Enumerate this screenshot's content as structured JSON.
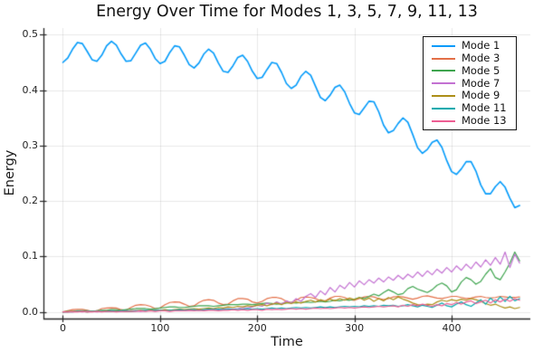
{
  "chart_data": {
    "type": "line",
    "title": "Energy Over Time for Modes 1, 3, 5, 7, 9, 11, 13",
    "xlabel": "Time",
    "ylabel": "Energy",
    "xlim": [
      -20,
      481
    ],
    "ylim": [
      -0.012,
      0.512
    ],
    "x_ticks": [
      0,
      100,
      200,
      300,
      400
    ],
    "x_tick_labels": [
      "0",
      "100",
      "200",
      "300",
      "400"
    ],
    "y_ticks": [
      0,
      0.1,
      0.2,
      0.3,
      0.4,
      0.5
    ],
    "y_tick_labels": [
      "0.0",
      "0.1",
      "0.2",
      "0.3",
      "0.4",
      "0.5"
    ],
    "grid": true,
    "grid_color": "rgba(0,0,0,0.09)",
    "axis_color": "#262626",
    "legend_position": "top-right",
    "x_start": 0,
    "x_step": 5,
    "series": [
      {
        "name": "Mode 1",
        "color": "#009AFA",
        "line_width": 1.6,
        "values": [
          0.45,
          0.458,
          0.474,
          0.486,
          0.484,
          0.47,
          0.455,
          0.452,
          0.463,
          0.48,
          0.488,
          0.481,
          0.465,
          0.452,
          0.453,
          0.467,
          0.481,
          0.485,
          0.474,
          0.457,
          0.448,
          0.452,
          0.468,
          0.48,
          0.478,
          0.463,
          0.446,
          0.44,
          0.449,
          0.465,
          0.474,
          0.467,
          0.449,
          0.434,
          0.432,
          0.444,
          0.459,
          0.463,
          0.452,
          0.434,
          0.421,
          0.423,
          0.437,
          0.45,
          0.448,
          0.432,
          0.412,
          0.403,
          0.409,
          0.425,
          0.434,
          0.427,
          0.407,
          0.387,
          0.381,
          0.391,
          0.405,
          0.409,
          0.397,
          0.376,
          0.359,
          0.356,
          0.368,
          0.38,
          0.379,
          0.361,
          0.337,
          0.323,
          0.327,
          0.34,
          0.35,
          0.342,
          0.32,
          0.296,
          0.286,
          0.293,
          0.306,
          0.31,
          0.297,
          0.273,
          0.253,
          0.248,
          0.258,
          0.271,
          0.271,
          0.254,
          0.229,
          0.213,
          0.213,
          0.226,
          0.235,
          0.225,
          0.205,
          0.188,
          0.192
        ]
      },
      {
        "name": "Mode 3",
        "color": "#E36F47",
        "line_width": 1.2,
        "values": [
          0.0,
          0.002,
          0.004,
          0.0045,
          0.0045,
          0.003,
          0.001,
          0.002,
          0.006,
          0.007,
          0.0075,
          0.007,
          0.004,
          0.003,
          0.008,
          0.012,
          0.013,
          0.0125,
          0.01,
          0.006,
          0.007,
          0.013,
          0.017,
          0.018,
          0.0175,
          0.014,
          0.01,
          0.011,
          0.017,
          0.021,
          0.022,
          0.021,
          0.016,
          0.013,
          0.014,
          0.02,
          0.024,
          0.024,
          0.023,
          0.018,
          0.016,
          0.019,
          0.024,
          0.026,
          0.026,
          0.024,
          0.019,
          0.017,
          0.021,
          0.026,
          0.027,
          0.026,
          0.024,
          0.02,
          0.02,
          0.025,
          0.028,
          0.028,
          0.026,
          0.022,
          0.021,
          0.024,
          0.027,
          0.028,
          0.027,
          0.024,
          0.022,
          0.024,
          0.027,
          0.028,
          0.027,
          0.025,
          0.023,
          0.025,
          0.028,
          0.029,
          0.027,
          0.025,
          0.024,
          0.026,
          0.028,
          0.028,
          0.026,
          0.024,
          0.025,
          0.027,
          0.028,
          0.026,
          0.025,
          0.026,
          0.028,
          0.027,
          0.026,
          0.026,
          0.027
        ]
      },
      {
        "name": "Mode 5",
        "color": "#3EA44E",
        "line_width": 1.2,
        "values": [
          0.0,
          0.001,
          0.001,
          0.002,
          0.002,
          0.002,
          0.001,
          0.002,
          0.003,
          0.003,
          0.004,
          0.004,
          0.003,
          0.004,
          0.005,
          0.006,
          0.006,
          0.006,
          0.005,
          0.006,
          0.007,
          0.008,
          0.009,
          0.009,
          0.008,
          0.008,
          0.009,
          0.01,
          0.011,
          0.011,
          0.011,
          0.01,
          0.011,
          0.012,
          0.013,
          0.013,
          0.013,
          0.014,
          0.014,
          0.013,
          0.014,
          0.015,
          0.016,
          0.015,
          0.014,
          0.015,
          0.016,
          0.017,
          0.016,
          0.017,
          0.018,
          0.017,
          0.018,
          0.019,
          0.018,
          0.019,
          0.021,
          0.02,
          0.022,
          0.021,
          0.023,
          0.026,
          0.024,
          0.028,
          0.032,
          0.029,
          0.035,
          0.04,
          0.036,
          0.031,
          0.033,
          0.042,
          0.046,
          0.041,
          0.038,
          0.035,
          0.04,
          0.048,
          0.052,
          0.047,
          0.036,
          0.04,
          0.054,
          0.062,
          0.058,
          0.05,
          0.055,
          0.068,
          0.078,
          0.062,
          0.058,
          0.072,
          0.088,
          0.108,
          0.092
        ]
      },
      {
        "name": "Mode 7",
        "color": "#C371D2",
        "line_width": 1.2,
        "values": [
          0.0,
          0.0,
          0.001,
          0.001,
          0.0,
          0.001,
          0.001,
          0.0,
          0.001,
          0.001,
          0.001,
          0.002,
          0.001,
          0.001,
          0.002,
          0.002,
          0.001,
          0.002,
          0.002,
          0.002,
          0.002,
          0.003,
          0.002,
          0.003,
          0.003,
          0.002,
          0.003,
          0.003,
          0.004,
          0.003,
          0.004,
          0.005,
          0.004,
          0.005,
          0.006,
          0.005,
          0.006,
          0.008,
          0.007,
          0.009,
          0.012,
          0.01,
          0.016,
          0.013,
          0.018,
          0.014,
          0.02,
          0.016,
          0.024,
          0.019,
          0.028,
          0.033,
          0.026,
          0.038,
          0.031,
          0.044,
          0.036,
          0.048,
          0.042,
          0.053,
          0.045,
          0.056,
          0.049,
          0.058,
          0.052,
          0.061,
          0.054,
          0.063,
          0.057,
          0.066,
          0.059,
          0.068,
          0.062,
          0.072,
          0.064,
          0.074,
          0.067,
          0.077,
          0.07,
          0.08,
          0.072,
          0.083,
          0.075,
          0.086,
          0.078,
          0.09,
          0.081,
          0.094,
          0.084,
          0.098,
          0.086,
          0.108,
          0.08,
          0.104,
          0.088
        ]
      },
      {
        "name": "Mode 9",
        "color": "#AC8E18",
        "line_width": 1.2,
        "values": [
          0.0,
          0.0,
          0.001,
          0.001,
          0.001,
          0.0,
          0.001,
          0.001,
          0.001,
          0.002,
          0.001,
          0.002,
          0.002,
          0.001,
          0.002,
          0.002,
          0.003,
          0.002,
          0.003,
          0.003,
          0.003,
          0.004,
          0.003,
          0.004,
          0.005,
          0.004,
          0.005,
          0.006,
          0.005,
          0.006,
          0.007,
          0.006,
          0.008,
          0.007,
          0.009,
          0.008,
          0.01,
          0.009,
          0.011,
          0.01,
          0.012,
          0.013,
          0.011,
          0.014,
          0.016,
          0.013,
          0.017,
          0.015,
          0.018,
          0.016,
          0.019,
          0.021,
          0.018,
          0.022,
          0.019,
          0.023,
          0.02,
          0.024,
          0.021,
          0.025,
          0.022,
          0.026,
          0.021,
          0.025,
          0.019,
          0.024,
          0.02,
          0.026,
          0.022,
          0.027,
          0.023,
          0.02,
          0.016,
          0.013,
          0.012,
          0.014,
          0.013,
          0.018,
          0.021,
          0.019,
          0.022,
          0.02,
          0.023,
          0.021,
          0.024,
          0.022,
          0.019,
          0.015,
          0.012,
          0.014,
          0.01,
          0.007,
          0.009,
          0.006,
          0.008
        ]
      },
      {
        "name": "Mode 11",
        "color": "#00AAAE",
        "line_width": 1.2,
        "values": [
          0.0,
          0.0,
          0.0,
          0.001,
          0.001,
          0.0,
          0.001,
          0.001,
          0.001,
          0.001,
          0.002,
          0.001,
          0.002,
          0.002,
          0.001,
          0.002,
          0.002,
          0.003,
          0.002,
          0.003,
          0.003,
          0.002,
          0.003,
          0.003,
          0.004,
          0.003,
          0.004,
          0.004,
          0.003,
          0.004,
          0.005,
          0.004,
          0.005,
          0.004,
          0.005,
          0.005,
          0.004,
          0.005,
          0.006,
          0.005,
          0.006,
          0.005,
          0.006,
          0.007,
          0.006,
          0.007,
          0.006,
          0.007,
          0.008,
          0.007,
          0.008,
          0.007,
          0.008,
          0.009,
          0.008,
          0.009,
          0.008,
          0.009,
          0.01,
          0.009,
          0.01,
          0.009,
          0.011,
          0.01,
          0.011,
          0.01,
          0.012,
          0.011,
          0.012,
          0.01,
          0.011,
          0.013,
          0.011,
          0.009,
          0.012,
          0.01,
          0.008,
          0.012,
          0.016,
          0.011,
          0.009,
          0.014,
          0.018,
          0.013,
          0.01,
          0.016,
          0.022,
          0.014,
          0.025,
          0.017,
          0.027,
          0.019,
          0.028,
          0.02,
          0.024
        ]
      },
      {
        "name": "Mode 13",
        "color": "#ED5E93",
        "line_width": 1.2,
        "values": [
          0.0,
          0.0,
          0.0,
          0.0,
          0.001,
          0.0,
          0.0,
          0.001,
          0.0,
          0.001,
          0.001,
          0.0,
          0.001,
          0.001,
          0.001,
          0.001,
          0.002,
          0.001,
          0.002,
          0.001,
          0.002,
          0.002,
          0.001,
          0.002,
          0.002,
          0.002,
          0.003,
          0.002,
          0.003,
          0.002,
          0.003,
          0.003,
          0.002,
          0.003,
          0.003,
          0.004,
          0.003,
          0.004,
          0.003,
          0.004,
          0.004,
          0.003,
          0.005,
          0.004,
          0.005,
          0.004,
          0.005,
          0.006,
          0.005,
          0.006,
          0.005,
          0.006,
          0.007,
          0.006,
          0.007,
          0.006,
          0.007,
          0.008,
          0.007,
          0.008,
          0.007,
          0.008,
          0.009,
          0.008,
          0.009,
          0.01,
          0.009,
          0.01,
          0.011,
          0.009,
          0.012,
          0.01,
          0.013,
          0.011,
          0.014,
          0.012,
          0.01,
          0.013,
          0.011,
          0.015,
          0.013,
          0.017,
          0.014,
          0.018,
          0.02,
          0.015,
          0.018,
          0.021,
          0.016,
          0.022,
          0.018,
          0.023,
          0.019,
          0.024,
          0.021
        ]
      }
    ]
  }
}
